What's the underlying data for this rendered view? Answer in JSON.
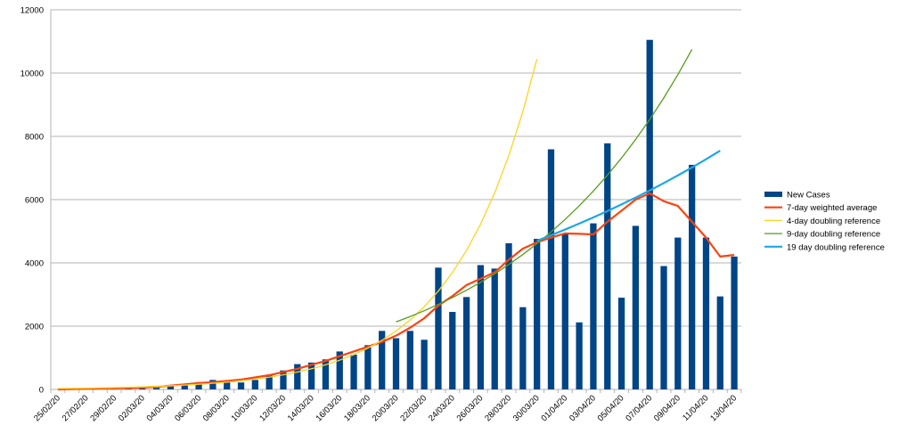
{
  "chart_data": {
    "type": "bar",
    "categories": [
      "25/02/20",
      null,
      "27/02/20",
      null,
      "29/02/20",
      null,
      "02/03/20",
      null,
      "04/03/20",
      null,
      "06/03/20",
      null,
      "08/03/20",
      null,
      "10/03/20",
      null,
      "12/03/20",
      null,
      "14/03/20",
      null,
      "16/03/20",
      null,
      "18/03/20",
      null,
      "20/03/20",
      null,
      "22/03/20",
      null,
      "24/03/20",
      null,
      "26/03/20",
      null,
      "28/03/20",
      null,
      "30/03/20",
      null,
      "01/04/20",
      null,
      "03/04/20",
      null,
      "05/04/20",
      null,
      "07/04/20",
      null,
      "09/04/20",
      null,
      "11/04/20",
      null,
      "13/04/20"
    ],
    "series": [
      {
        "name": "New Cases",
        "type": "bar",
        "color": "#004586",
        "values": [
          0,
          5,
          5,
          10,
          15,
          20,
          30,
          50,
          100,
          150,
          230,
          300,
          230,
          220,
          300,
          450,
          600,
          800,
          850,
          950,
          1200,
          1100,
          1400,
          1850,
          1620,
          1850,
          1570,
          3850,
          2450,
          2920,
          3930,
          3820,
          4620,
          2600,
          4760,
          7590,
          4920,
          2120,
          5250,
          7780,
          2900,
          5170,
          11050,
          3900,
          4800,
          7100,
          4800,
          2940,
          4200
        ]
      },
      {
        "name": "7-day weighted average",
        "type": "line",
        "color": "#ff420e",
        "width": 2.2,
        "values": [
          0,
          10,
          20,
          30,
          35,
          40,
          60,
          80,
          120,
          160,
          200,
          230,
          270,
          310,
          380,
          450,
          550,
          650,
          780,
          900,
          1050,
          1200,
          1350,
          1500,
          1700,
          1950,
          2250,
          2650,
          2950,
          3300,
          3500,
          3700,
          4100,
          4450,
          4650,
          4800,
          4930,
          4920,
          4900,
          5300,
          5650,
          6000,
          6200,
          5950,
          5800,
          5300,
          4800,
          4200,
          4250
        ]
      },
      {
        "name": "4-day doubling reference",
        "type": "line",
        "color": "#ffd320",
        "width": 1.3,
        "values": [
          29,
          34,
          41,
          49,
          58,
          69,
          82,
          97,
          115,
          137,
          163,
          194,
          231,
          275,
          327,
          388,
          462,
          549,
          653,
          777,
          924,
          1098,
          1306,
          1553,
          1847,
          2197,
          2613,
          3107,
          3695,
          4394,
          5225,
          6213,
          7389,
          8787,
          10450,
          null,
          null,
          null,
          null,
          null,
          null,
          null,
          null,
          null,
          null,
          null,
          null,
          null,
          null
        ]
      },
      {
        "name": "9-day doubling reference",
        "type": "line",
        "color": "#579d1c",
        "width": 1.3,
        "values": [
          null,
          null,
          null,
          null,
          null,
          null,
          null,
          null,
          null,
          null,
          null,
          null,
          null,
          null,
          null,
          null,
          null,
          null,
          null,
          null,
          null,
          null,
          null,
          null,
          2133,
          2304,
          2488,
          2688,
          2903,
          3135,
          3386,
          3657,
          3950,
          4266,
          4608,
          4977,
          5375,
          5805,
          6270,
          6772,
          7314,
          7900,
          8532,
          9215,
          9953,
          10750,
          null,
          null,
          null
        ]
      },
      {
        "name": "19 day doubling reference",
        "type": "line",
        "color": "#1ba7e6",
        "width": 2.2,
        "values": [
          null,
          null,
          null,
          null,
          null,
          null,
          null,
          null,
          null,
          null,
          null,
          null,
          null,
          null,
          null,
          null,
          null,
          null,
          null,
          null,
          null,
          null,
          null,
          null,
          null,
          null,
          null,
          null,
          null,
          null,
          null,
          null,
          null,
          null,
          4700,
          4874,
          5055,
          5243,
          5437,
          5639,
          5848,
          6065,
          6290,
          6523,
          6765,
          7016,
          7277,
          7547,
          null
        ]
      }
    ],
    "ylim": [
      0,
      12000
    ],
    "yticks": [
      0,
      2000,
      4000,
      6000,
      8000,
      10000,
      12000
    ],
    "grid": true,
    "legend": "right"
  }
}
